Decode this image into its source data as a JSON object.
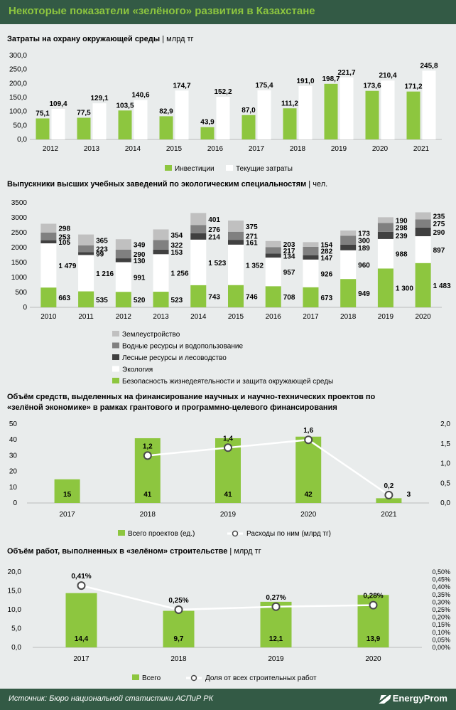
{
  "header": {
    "title": "Некоторые показатели «зелёного» развития в Казахстане"
  },
  "footer": {
    "source": "Источник: Бюро национальной статистики АСПиР РК",
    "logo": "EnergyProm"
  },
  "colors": {
    "header_bg": "#335a45",
    "title_green": "#8dc63f",
    "bar_green": "#8dc63f",
    "bar_white": "#ffffff",
    "dark": "#404040",
    "mid_gray": "#808080",
    "light_gray": "#c0c0c0",
    "background": "#e9ecec"
  },
  "chart_data": [
    {
      "type": "bar",
      "title": "Затраты на охрану окружающей среды",
      "unit": "млрд тг",
      "categories": [
        "2012",
        "2013",
        "2014",
        "2015",
        "2016",
        "2017",
        "2018",
        "2019",
        "2020",
        "2021"
      ],
      "series": [
        {
          "name": "Инвестиции",
          "values": [
            75.1,
            77.5,
            103.5,
            82.9,
            43.9,
            87.0,
            111.2,
            198.7,
            173.6,
            171.2
          ],
          "labels": [
            "75,1",
            "77,5",
            "103,5",
            "82,9",
            "43,9",
            "87,0",
            "111,2",
            "198,7",
            "173,6",
            "171,2"
          ]
        },
        {
          "name": "Текущие затраты",
          "values": [
            109.4,
            129.1,
            140.6,
            174.7,
            152.2,
            175.4,
            191.0,
            221.7,
            210.4,
            245.8
          ],
          "labels": [
            "109,4",
            "129,1",
            "140,6",
            "174,7",
            "152,2",
            "175,4",
            "191,0",
            "221,7",
            "210,4",
            "245,8"
          ]
        }
      ],
      "y_ticks": [
        "0,0",
        "50,0",
        "100,0",
        "150,0",
        "200,0",
        "250,0",
        "300,0"
      ],
      "ylim": [
        0,
        300
      ],
      "legend_position": "bottom"
    },
    {
      "type": "bar",
      "stacked": true,
      "title": "Выпускники высших учебных заведений по экологическим специальностям",
      "unit": "чел.",
      "categories": [
        "2010",
        "2011",
        "2012",
        "2013",
        "2014",
        "2015",
        "2016",
        "2017",
        "2018",
        "2019",
        "2020"
      ],
      "series": [
        {
          "name": "Безопасность жизнедеятельности и защита окружающей среды",
          "values": [
            663,
            535,
            520,
            523,
            743,
            746,
            708,
            673,
            949,
            1300,
            1483
          ],
          "labels": [
            "663",
            "535",
            "520",
            "523",
            "743",
            "746",
            "708",
            "673",
            "949",
            "1 300",
            "1 483"
          ]
        },
        {
          "name": "Экология",
          "values": [
            1479,
            1216,
            991,
            1256,
            1523,
            1352,
            957,
            926,
            960,
            988,
            897
          ],
          "labels": [
            "1 479",
            "1 216",
            "991",
            "1 256",
            "1 523",
            "1 352",
            "957",
            "926",
            "960",
            "988",
            "897"
          ]
        },
        {
          "name": "Лесные ресурсы и лесоводство",
          "values": [
            105,
            99,
            130,
            153,
            214,
            161,
            134,
            147,
            189,
            239,
            290
          ],
          "labels": [
            "105",
            "99",
            "130",
            "153",
            "214",
            "161",
            "134",
            "147",
            "189",
            "239",
            "290"
          ]
        },
        {
          "name": "Водные ресурсы и водопользование",
          "values": [
            253,
            223,
            290,
            322,
            276,
            271,
            217,
            282,
            300,
            298,
            275
          ],
          "labels": [
            "253",
            "223",
            "290",
            "322",
            "276",
            "271",
            "217",
            "282",
            "300",
            "298",
            "275"
          ]
        },
        {
          "name": "Землеустройство",
          "values": [
            298,
            365,
            349,
            354,
            401,
            375,
            203,
            154,
            173,
            190,
            235
          ],
          "labels": [
            "298",
            "365",
            "349",
            "354",
            "401",
            "375",
            "203",
            "154",
            "173",
            "190",
            "235"
          ]
        }
      ],
      "y_ticks": [
        "0",
        "500",
        "1000",
        "1500",
        "2000",
        "2500",
        "3000",
        "3500"
      ],
      "ylim": [
        0,
        3500
      ],
      "legend_position": "bottom"
    },
    {
      "type": "bar",
      "title": "Объём средств, выделенных на финансирование научных и научно-технических проектов по «зелёной экономике» в рамках грантового и программно-целевого финансирования",
      "categories": [
        "2017",
        "2018",
        "2019",
        "2020",
        "2021"
      ],
      "series": [
        {
          "name": "Всего проектов (ед.)",
          "type": "bar",
          "values": [
            15,
            41,
            41,
            42,
            3
          ],
          "labels": [
            "15",
            "41",
            "41",
            "42",
            "3"
          ]
        },
        {
          "name": "Расходы по ним (млрд тг)",
          "type": "line",
          "axis": "right",
          "values": [
            null,
            1.2,
            1.4,
            1.6,
            0.2
          ],
          "labels": [
            "",
            "1,2",
            "1,4",
            "1,6",
            "0,2"
          ]
        }
      ],
      "y_ticks": [
        "0",
        "10",
        "20",
        "30",
        "40",
        "50"
      ],
      "ylim": [
        0,
        50
      ],
      "y2_ticks": [
        "0,0",
        "0,5",
        "1,0",
        "1,5",
        "2,0"
      ],
      "y2lim": [
        0,
        2
      ],
      "legend_position": "bottom"
    },
    {
      "type": "bar",
      "title": "Объём работ, выполненных в «зелёном» строительстве",
      "unit": "млрд тг",
      "categories": [
        "2017",
        "2018",
        "2019",
        "2020"
      ],
      "series": [
        {
          "name": "Всего",
          "type": "bar",
          "values": [
            14.4,
            9.7,
            12.1,
            13.9
          ],
          "labels": [
            "14,4",
            "9,7",
            "12,1",
            "13,9"
          ]
        },
        {
          "name": "Доля от всех строительных работ",
          "type": "line",
          "axis": "right",
          "values": [
            0.41,
            0.25,
            0.27,
            0.28
          ],
          "labels": [
            "0,41%",
            "0,25%",
            "0,27%",
            "0,28%"
          ]
        }
      ],
      "y_ticks": [
        "0,0",
        "5,0",
        "10,0",
        "15,0",
        "20,0"
      ],
      "ylim": [
        0,
        20
      ],
      "y2_ticks": [
        "0,00%",
        "0,05%",
        "0,10%",
        "0,15%",
        "0,20%",
        "0,25%",
        "0,30%",
        "0,35%",
        "0,40%",
        "0,45%",
        "0,50%"
      ],
      "y2lim": [
        0,
        0.5
      ],
      "legend_position": "bottom"
    }
  ]
}
